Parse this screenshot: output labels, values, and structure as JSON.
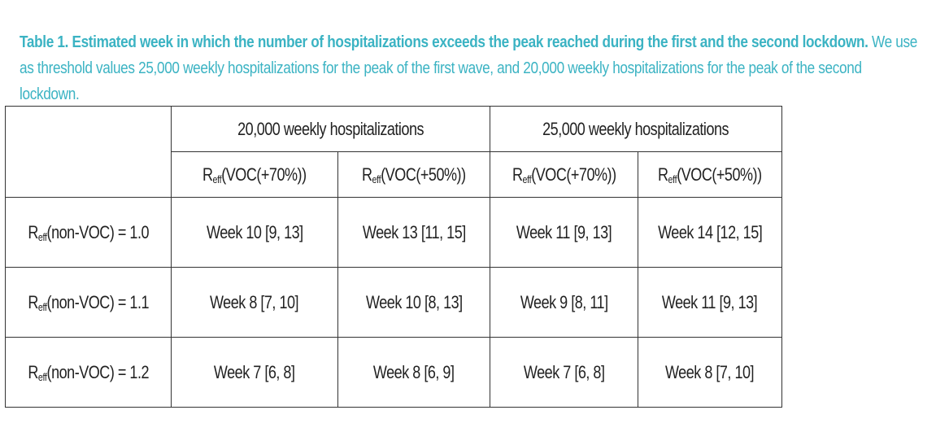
{
  "caption": {
    "bold": "Table 1. Estimated week in which the number of hospitalizations exceeds the peak reached during the first and the second lockdown.",
    "body": "We use as threshold values 25,000 weekly hospitalizations for the peak of the first wave, and 20,000 weekly hospitalizations for the peak of the second lockdown."
  },
  "table": {
    "groups": [
      {
        "label": "20,000 weekly hospitalizations"
      },
      {
        "label": "25,000 weekly hospitalizations"
      }
    ],
    "subheaders": [
      {
        "r": "R",
        "sub": "eff",
        "rest": "(VOC(+70%))"
      },
      {
        "r": "R",
        "sub": "eff",
        "rest": "(VOC(+50%))"
      },
      {
        "r": "R",
        "sub": "eff",
        "rest": "(VOC(+70%))"
      },
      {
        "r": "R",
        "sub": "eff",
        "rest": "(VOC(+50%))"
      }
    ],
    "rows": [
      {
        "label": {
          "r": "R",
          "sub": "eff",
          "rest": "(non-VOC) = 1.0"
        },
        "cells": [
          "Week 10 [9, 13]",
          "Week 13 [11, 15]",
          "Week 11 [9, 13]",
          "Week 14 [12, 15]"
        ]
      },
      {
        "label": {
          "r": "R",
          "sub": "eff",
          "rest": "(non-VOC) = 1.1"
        },
        "cells": [
          "Week 8 [7, 10]",
          "Week 10 [8, 13]",
          "Week 9 [8, 11]",
          "Week 11 [9, 13]"
        ]
      },
      {
        "label": {
          "r": "R",
          "sub": "eff",
          "rest": "(non-VOC) = 1.2"
        },
        "cells": [
          "Week 7 [6, 8]",
          "Week 8 [6, 9]",
          "Week 7 [6, 8]",
          "Week 8 [7, 10]"
        ]
      }
    ]
  }
}
